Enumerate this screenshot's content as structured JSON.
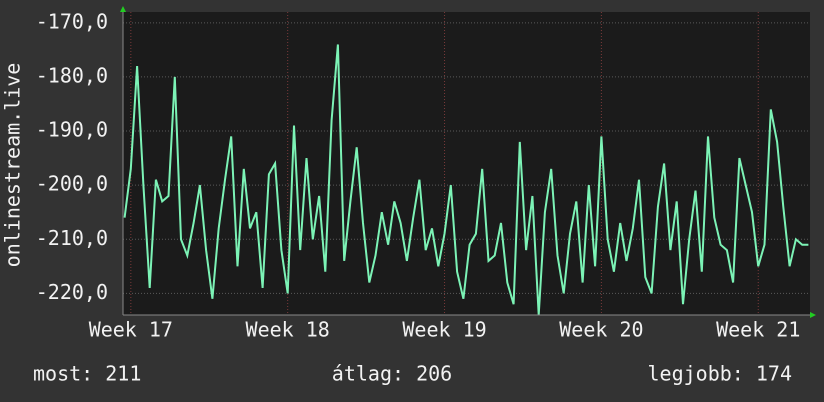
{
  "chart_data": {
    "type": "line",
    "y_label": "onlinestream.live",
    "x": [
      16.96,
      17.0,
      17.04,
      17.08,
      17.12,
      17.16,
      17.2,
      17.24,
      17.28,
      17.32,
      17.36,
      17.4,
      17.44,
      17.48,
      17.52,
      17.56,
      17.6,
      17.64,
      17.68,
      17.72,
      17.76,
      17.8,
      17.84,
      17.88,
      17.92,
      17.96,
      18.0,
      18.04,
      18.08,
      18.12,
      18.16,
      18.2,
      18.24,
      18.28,
      18.32,
      18.36,
      18.4,
      18.44,
      18.48,
      18.52,
      18.56,
      18.6,
      18.64,
      18.68,
      18.72,
      18.76,
      18.8,
      18.84,
      18.88,
      18.92,
      18.96,
      19.0,
      19.04,
      19.08,
      19.12,
      19.16,
      19.2,
      19.24,
      19.28,
      19.32,
      19.36,
      19.4,
      19.44,
      19.48,
      19.52,
      19.56,
      19.6,
      19.64,
      19.68,
      19.72,
      19.76,
      19.8,
      19.84,
      19.88,
      19.92,
      19.96,
      20.0,
      20.04,
      20.08,
      20.12,
      20.16,
      20.2,
      20.24,
      20.28,
      20.32,
      20.36,
      20.4,
      20.44,
      20.48,
      20.52,
      20.56,
      20.6,
      20.64,
      20.68,
      20.72,
      20.76,
      20.8,
      20.84,
      20.88,
      20.92,
      20.96,
      21.0,
      21.04,
      21.08,
      21.12,
      21.16,
      21.2,
      21.24,
      21.28,
      21.32
    ],
    "series": [
      {
        "color": "#7cf3b6",
        "values": [
          -206,
          -197,
          -178,
          -200,
          -219,
          -199,
          -203,
          -202,
          -180,
          -210,
          -213,
          -207,
          -200,
          -212,
          -221,
          -208,
          -199,
          -191,
          -215,
          -197,
          -208,
          -205,
          -219,
          -198,
          -196,
          -212,
          -220,
          -189,
          -212,
          -195,
          -210,
          -202,
          -216,
          -188,
          -174,
          -214,
          -203,
          -193,
          -207,
          -218,
          -213,
          -205,
          -211,
          -203,
          -207,
          -214,
          -206,
          -199,
          -212,
          -208,
          -215,
          -209,
          -200,
          -216,
          -221,
          -211,
          -209,
          -197,
          -214,
          -213,
          -207,
          -218,
          -222,
          -192,
          -212,
          -202,
          -224,
          -205,
          -197,
          -213,
          -220,
          -209,
          -203,
          -218,
          -200,
          -215,
          -191,
          -210,
          -216,
          -207,
          -214,
          -208,
          -199,
          -217,
          -220,
          -204,
          -196,
          -212,
          -203,
          -222,
          -210,
          -201,
          -216,
          -191,
          -206,
          -211,
          -212,
          -218,
          -195,
          -200,
          -205,
          -215,
          -211,
          -186,
          -192,
          -204,
          -215,
          -210,
          -211,
          -211
        ]
      }
    ],
    "xlim": [
      16.95,
      21.33
    ],
    "xticks": [
      {
        "value": 17,
        "label": "Week 17"
      },
      {
        "value": 18,
        "label": "Week 18"
      },
      {
        "value": 19,
        "label": "Week 19"
      },
      {
        "value": 20,
        "label": "Week 20"
      },
      {
        "value": 21,
        "label": "Week 21"
      }
    ],
    "ylim": [
      -224,
      -168
    ],
    "yticks": [
      {
        "value": -170,
        "label": "-170,0"
      },
      {
        "value": -180,
        "label": "-180,0"
      },
      {
        "value": -190,
        "label": "-190,0"
      },
      {
        "value": -200,
        "label": "-200,0"
      },
      {
        "value": -210,
        "label": "-210,0"
      },
      {
        "value": -220,
        "label": "-220,0"
      }
    ],
    "grid": true,
    "footer": [
      "most: 211",
      "átlag: 206",
      "legjobb: 174"
    ]
  }
}
